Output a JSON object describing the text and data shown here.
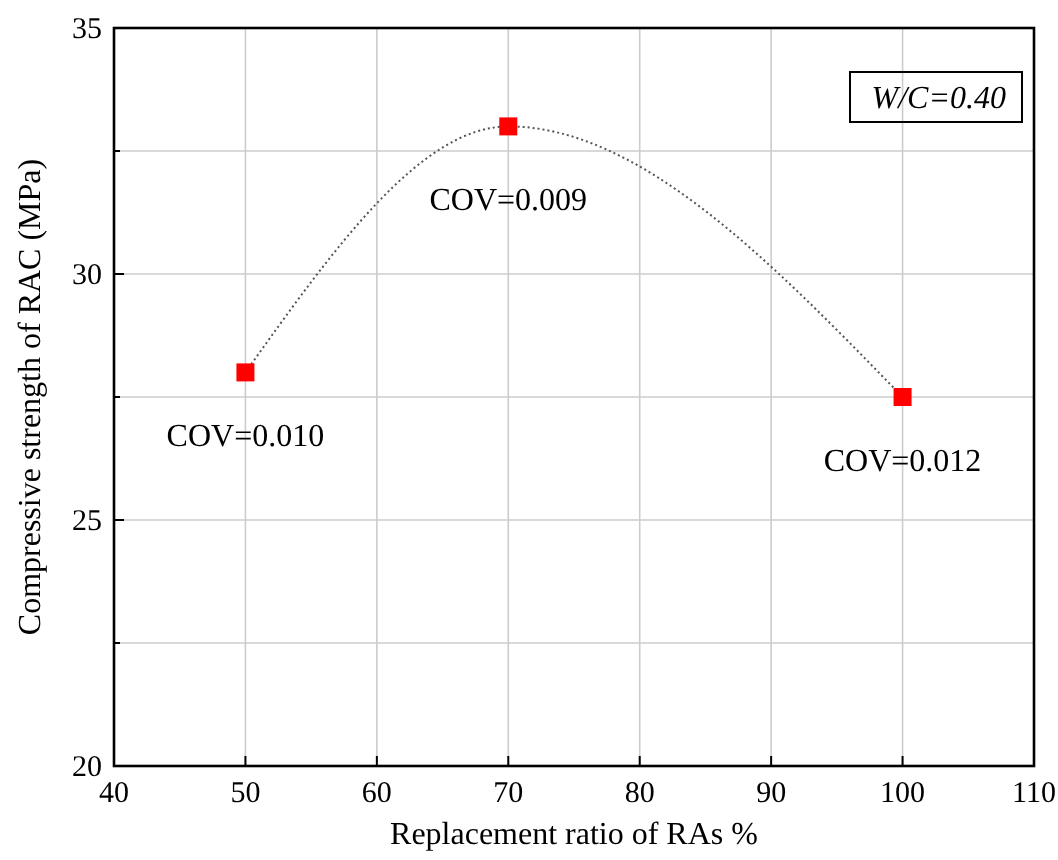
{
  "chart_data": {
    "type": "scatter",
    "xlabel": "Replacement ratio of RAs %",
    "ylabel": "Compressive strength of RAC (MPa)",
    "x": [
      50,
      70,
      100
    ],
    "series": [
      {
        "type": "line",
        "color": "#555555",
        "line_style": "dotted",
        "marker": "none",
        "values": [
          28,
          33,
          27.5
        ]
      },
      {
        "color": "#ff0000",
        "marker": "square",
        "values": [
          28,
          33,
          27.5
        ]
      }
    ],
    "xlim": [
      40,
      110
    ],
    "xticks": [
      40,
      50,
      60,
      70,
      80,
      90,
      100,
      110
    ],
    "ylim": [
      20,
      35
    ],
    "yticks": [
      20,
      {
        "value": 22.5,
        "label": null
      },
      25,
      {
        "value": 27.5,
        "label": null
      },
      30,
      {
        "value": 32.5,
        "label": null
      },
      35
    ],
    "grid": true,
    "annotations": [
      {
        "text": "COV=0.010",
        "x": 50,
        "y": 28
      },
      {
        "text": "COV=0.009",
        "x": 70,
        "y": 33
      },
      {
        "text": "COV=0.012",
        "x": 100,
        "y": 27.5
      },
      "W/C=0.40"
    ]
  }
}
